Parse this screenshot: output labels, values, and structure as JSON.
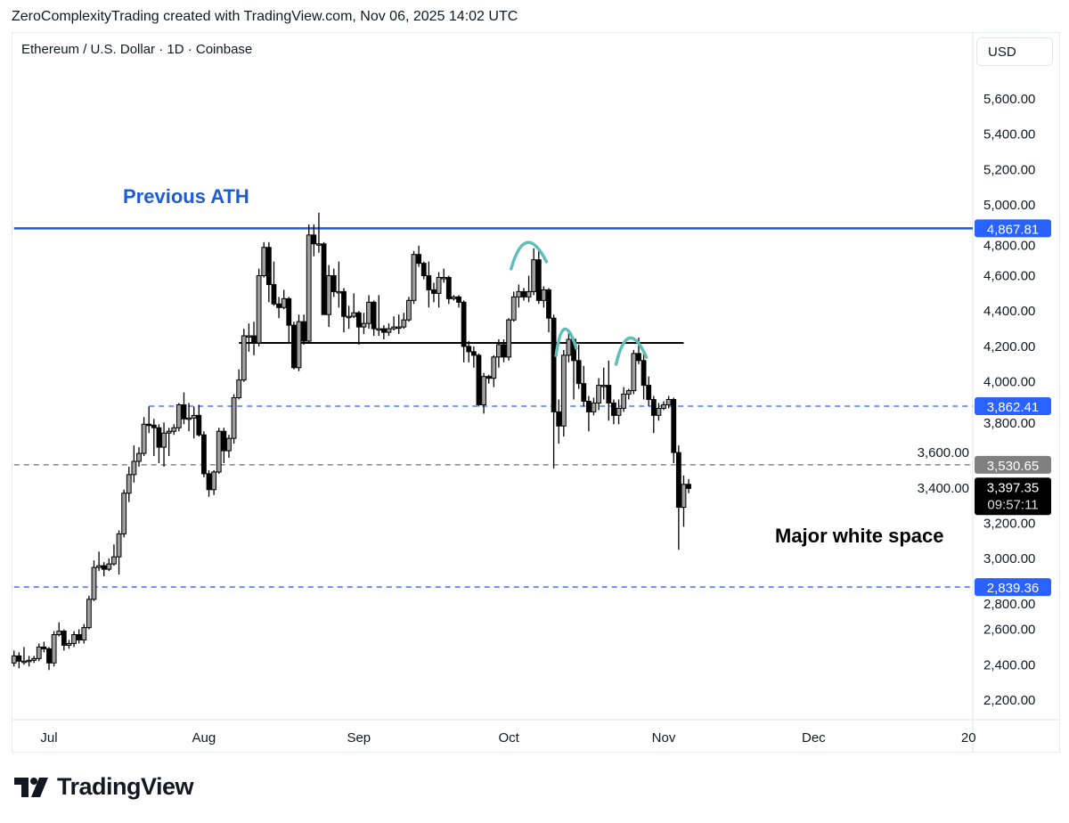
{
  "header": {
    "text": "ZeroComplexityTrading created with TradingView.com, Nov 06, 2025 14:02 UTC"
  },
  "symbol": {
    "text": "Ethereum / U.S. Dollar · 1D · Coinbase"
  },
  "currency_button": "USD",
  "logo": {
    "text": "TradingView",
    "icon": "tradingview-logo-icon"
  },
  "chart_data": {
    "type": "candlestick",
    "ylim": [
      2100,
      5750
    ],
    "y_ticks": [
      "5,600.00",
      "5,400.00",
      "5,200.00",
      "5,000.00",
      "4,800.00",
      "4,600.00",
      "4,400.00",
      "4,200.00",
      "4,000.00",
      "3,800.00",
      "3,600.00",
      "3,400.00",
      "3,200.00",
      "3,000.00",
      "2,800.00",
      "2,600.00",
      "2,400.00",
      "2,200.00"
    ],
    "y_tick_values": [
      5600,
      5400,
      5200,
      5000,
      4800,
      4600,
      4400,
      4200,
      4000,
      3800,
      3600,
      3400,
      3200,
      3000,
      2800,
      2600,
      2400,
      2200
    ],
    "x_ticks": [
      {
        "label": "Jul",
        "date": "2025-07-01"
      },
      {
        "label": "Aug",
        "date": "2025-08-01"
      },
      {
        "label": "Sep",
        "date": "2025-09-01"
      },
      {
        "label": "Oct",
        "date": "2025-10-01"
      },
      {
        "label": "Nov",
        "date": "2025-11-01"
      },
      {
        "label": "Dec",
        "date": "2025-12-01"
      },
      {
        "label": "20",
        "date": "2026-01-01"
      }
    ],
    "colors": {
      "up_body": "#9e9e9e",
      "down_body": "#000000",
      "outline": "#000000",
      "ath_line": "#1e5bd8",
      "level_dash": "#2962ff",
      "last_dash": "#787b86",
      "arc": "#5fbfb8",
      "blue_label": "#2962ff",
      "grey_label": "#808080",
      "price_label": "#000000"
    },
    "levels": [
      {
        "name": "previous-ath",
        "value": 4867.81,
        "label": "4,867.81",
        "style": "solid",
        "color": "#1e5bd8",
        "from": "2025-06-24"
      },
      {
        "name": "resistance",
        "value": 3862.41,
        "label": "3,862.41",
        "style": "dashed",
        "color": "#2962ff",
        "from": "2025-07-21"
      },
      {
        "name": "reference",
        "value": 3530.65,
        "label": "3,530.65",
        "style": "dashed",
        "color": "#787b86",
        "from": "2025-06-24"
      },
      {
        "name": "support",
        "value": 2839.36,
        "label": "2,839.36",
        "style": "dashed",
        "color": "#2962ff",
        "from": "2025-06-24"
      },
      {
        "name": "neckline",
        "value": 4220,
        "style": "solid",
        "color": "#000000",
        "from": "2025-08-08",
        "to": "2025-11-05"
      }
    ],
    "last_price": {
      "value": 3397.35,
      "label": "3,397.35",
      "countdown": "09:57:11"
    },
    "annotations": [
      {
        "text": "Previous ATH",
        "color": "#1e5bd8"
      },
      {
        "text": "Major white space",
        "color": "#000000"
      }
    ],
    "arcs": [
      {
        "from": "2025-10-02",
        "to": "2025-10-08",
        "peak": 4790
      },
      {
        "from": "2025-10-11",
        "to": "2025-10-14",
        "peak": 4300
      },
      {
        "from": "2025-10-23",
        "to": "2025-10-28",
        "peak": 4250
      }
    ],
    "candles": [
      [
        "2025-06-24",
        2410,
        2480,
        2390,
        2450
      ],
      [
        "2025-06-25",
        2450,
        2470,
        2380,
        2420
      ],
      [
        "2025-06-26",
        2420,
        2500,
        2400,
        2420
      ],
      [
        "2025-06-27",
        2420,
        2450,
        2390,
        2425
      ],
      [
        "2025-06-28",
        2425,
        2450,
        2410,
        2435
      ],
      [
        "2025-06-29",
        2435,
        2520,
        2420,
        2500
      ],
      [
        "2025-06-30",
        2500,
        2530,
        2470,
        2490
      ],
      [
        "2025-07-01",
        2490,
        2500,
        2370,
        2410
      ],
      [
        "2025-07-02",
        2410,
        2590,
        2390,
        2570
      ],
      [
        "2025-07-03",
        2570,
        2640,
        2560,
        2590
      ],
      [
        "2025-07-04",
        2590,
        2600,
        2480,
        2510
      ],
      [
        "2025-07-05",
        2510,
        2540,
        2490,
        2520
      ],
      [
        "2025-07-06",
        2520,
        2590,
        2500,
        2570
      ],
      [
        "2025-07-07",
        2570,
        2600,
        2520,
        2540
      ],
      [
        "2025-07-08",
        2540,
        2630,
        2520,
        2610
      ],
      [
        "2025-07-09",
        2610,
        2790,
        2600,
        2770
      ],
      [
        "2025-07-10",
        2770,
        2990,
        2760,
        2950
      ],
      [
        "2025-07-11",
        2950,
        3040,
        2930,
        2960
      ],
      [
        "2025-07-12",
        2960,
        2980,
        2900,
        2940
      ],
      [
        "2025-07-13",
        2940,
        3000,
        2930,
        2970
      ],
      [
        "2025-07-14",
        2970,
        3080,
        2960,
        3010
      ],
      [
        "2025-07-15",
        3010,
        3160,
        2910,
        3140
      ],
      [
        "2025-07-16",
        3140,
        3390,
        3120,
        3370
      ],
      [
        "2025-07-17",
        3370,
        3520,
        3320,
        3475
      ],
      [
        "2025-07-18",
        3475,
        3640,
        3430,
        3550
      ],
      [
        "2025-07-19",
        3550,
        3630,
        3520,
        3595
      ],
      [
        "2025-07-20",
        3595,
        3800,
        3580,
        3760
      ],
      [
        "2025-07-21",
        3760,
        3860,
        3710,
        3755
      ],
      [
        "2025-07-22",
        3755,
        3790,
        3580,
        3740
      ],
      [
        "2025-07-23",
        3740,
        3760,
        3540,
        3630
      ],
      [
        "2025-07-24",
        3630,
        3770,
        3520,
        3710
      ],
      [
        "2025-07-25",
        3710,
        3740,
        3580,
        3720
      ],
      [
        "2025-07-26",
        3720,
        3760,
        3700,
        3740
      ],
      [
        "2025-07-27",
        3740,
        3880,
        3720,
        3870
      ],
      [
        "2025-07-28",
        3870,
        3940,
        3760,
        3790
      ],
      [
        "2025-07-29",
        3790,
        3880,
        3720,
        3795
      ],
      [
        "2025-07-30",
        3795,
        3860,
        3680,
        3810
      ],
      [
        "2025-07-31",
        3810,
        3870,
        3690,
        3700
      ],
      [
        "2025-08-01",
        3700,
        3720,
        3460,
        3480
      ],
      [
        "2025-08-02",
        3480,
        3500,
        3350,
        3390
      ],
      [
        "2025-08-03",
        3390,
        3500,
        3360,
        3490
      ],
      [
        "2025-08-04",
        3490,
        3740,
        3480,
        3720
      ],
      [
        "2025-08-05",
        3720,
        3740,
        3540,
        3610
      ],
      [
        "2025-08-06",
        3610,
        3700,
        3570,
        3680
      ],
      [
        "2025-08-07",
        3680,
        3930,
        3650,
        3910
      ],
      [
        "2025-08-08",
        3910,
        4070,
        3900,
        4010
      ],
      [
        "2025-08-09",
        4010,
        4300,
        4000,
        4260
      ],
      [
        "2025-08-10",
        4260,
        4330,
        4170,
        4260
      ],
      [
        "2025-08-11",
        4260,
        4340,
        4150,
        4220
      ],
      [
        "2025-08-12",
        4220,
        4640,
        4200,
        4600
      ],
      [
        "2025-08-13",
        4600,
        4790,
        4590,
        4760
      ],
      [
        "2025-08-14",
        4760,
        4790,
        4450,
        4550
      ],
      [
        "2025-08-15",
        4550,
        4680,
        4430,
        4440
      ],
      [
        "2025-08-16",
        4440,
        4480,
        4360,
        4420
      ],
      [
        "2025-08-17",
        4420,
        4520,
        4410,
        4470
      ],
      [
        "2025-08-18",
        4470,
        4480,
        4220,
        4320
      ],
      [
        "2025-08-19",
        4320,
        4340,
        4070,
        4080
      ],
      [
        "2025-08-20",
        4080,
        4380,
        4060,
        4340
      ],
      [
        "2025-08-21",
        4340,
        4380,
        4210,
        4230
      ],
      [
        "2025-08-22",
        4230,
        4890,
        4220,
        4830
      ],
      [
        "2025-08-23",
        4830,
        4890,
        4710,
        4780
      ],
      [
        "2025-08-24",
        4780,
        4956,
        4730,
        4780
      ],
      [
        "2025-08-25",
        4780,
        4790,
        4380,
        4380
      ],
      [
        "2025-08-26",
        4380,
        4660,
        4310,
        4600
      ],
      [
        "2025-08-27",
        4600,
        4640,
        4480,
        4510
      ],
      [
        "2025-08-28",
        4510,
        4680,
        4420,
        4510
      ],
      [
        "2025-08-29",
        4510,
        4530,
        4280,
        4370
      ],
      [
        "2025-08-30",
        4370,
        4430,
        4300,
        4370
      ],
      [
        "2025-08-31",
        4370,
        4500,
        4360,
        4390
      ],
      [
        "2025-09-01",
        4390,
        4400,
        4210,
        4310
      ],
      [
        "2025-09-02",
        4310,
        4390,
        4270,
        4330
      ],
      [
        "2025-09-03",
        4330,
        4490,
        4300,
        4450
      ],
      [
        "2025-09-04",
        4450,
        4460,
        4260,
        4300
      ],
      [
        "2025-09-05",
        4300,
        4490,
        4260,
        4300
      ],
      [
        "2025-09-06",
        4300,
        4320,
        4240,
        4280
      ],
      [
        "2025-09-07",
        4280,
        4330,
        4260,
        4300
      ],
      [
        "2025-09-08",
        4300,
        4370,
        4290,
        4310
      ],
      [
        "2025-09-09",
        4310,
        4380,
        4270,
        4310
      ],
      [
        "2025-09-10",
        4310,
        4390,
        4300,
        4350
      ],
      [
        "2025-09-11",
        4350,
        4480,
        4340,
        4460
      ],
      [
        "2025-09-12",
        4460,
        4740,
        4440,
        4720
      ],
      [
        "2025-09-13",
        4720,
        4770,
        4650,
        4670
      ],
      [
        "2025-09-14",
        4670,
        4680,
        4580,
        4600
      ],
      [
        "2025-09-15",
        4600,
        4680,
        4420,
        4520
      ],
      [
        "2025-09-16",
        4520,
        4560,
        4450,
        4500
      ],
      [
        "2025-09-17",
        4500,
        4620,
        4420,
        4590
      ],
      [
        "2025-09-18",
        4590,
        4640,
        4560,
        4590
      ],
      [
        "2025-09-19",
        4590,
        4600,
        4440,
        4470
      ],
      [
        "2025-09-20",
        4470,
        4490,
        4460,
        4480
      ],
      [
        "2025-09-21",
        4480,
        4490,
        4420,
        4450
      ],
      [
        "2025-09-22",
        4450,
        4460,
        4110,
        4200
      ],
      [
        "2025-09-23",
        4200,
        4230,
        4110,
        4170
      ],
      [
        "2025-09-24",
        4170,
        4200,
        4080,
        4150
      ],
      [
        "2025-09-25",
        4150,
        4160,
        3860,
        3870
      ],
      [
        "2025-09-26",
        3870,
        4050,
        3820,
        4030
      ],
      [
        "2025-09-27",
        4030,
        4040,
        3990,
        4020
      ],
      [
        "2025-09-28",
        4020,
        4150,
        3970,
        4140
      ],
      [
        "2025-09-29",
        4140,
        4240,
        4080,
        4210
      ],
      [
        "2025-09-30",
        4210,
        4240,
        4110,
        4140
      ],
      [
        "2025-10-01",
        4140,
        4360,
        4120,
        4350
      ],
      [
        "2025-10-02",
        4350,
        4510,
        4340,
        4480
      ],
      [
        "2025-10-03",
        4480,
        4550,
        4420,
        4510
      ],
      [
        "2025-10-04",
        4510,
        4530,
        4460,
        4480
      ],
      [
        "2025-10-05",
        4480,
        4600,
        4450,
        4510
      ],
      [
        "2025-10-06",
        4510,
        4755,
        4490,
        4690
      ],
      [
        "2025-10-07",
        4690,
        4750,
        4440,
        4460
      ],
      [
        "2025-10-08",
        4460,
        4540,
        4420,
        4520
      ],
      [
        "2025-10-09",
        4520,
        4530,
        4280,
        4360
      ],
      [
        "2025-10-10",
        4360,
        4380,
        3510,
        3830
      ],
      [
        "2025-10-11",
        3830,
        3900,
        3650,
        3750
      ],
      [
        "2025-10-12",
        3750,
        4180,
        3690,
        4150
      ],
      [
        "2025-10-13",
        4150,
        4290,
        4110,
        4240
      ],
      [
        "2025-10-14",
        4240,
        4250,
        3900,
        4120
      ],
      [
        "2025-10-15",
        4120,
        4210,
        3960,
        3990
      ],
      [
        "2025-10-16",
        3990,
        4090,
        3860,
        3890
      ],
      [
        "2025-10-17",
        3890,
        3920,
        3720,
        3830
      ],
      [
        "2025-10-18",
        3830,
        3910,
        3810,
        3880
      ],
      [
        "2025-10-19",
        3880,
        4020,
        3840,
        3980
      ],
      [
        "2025-10-20",
        3980,
        4080,
        3900,
        3980
      ],
      [
        "2025-10-21",
        3980,
        4120,
        3780,
        3880
      ],
      [
        "2025-10-22",
        3880,
        3900,
        3760,
        3810
      ],
      [
        "2025-10-23",
        3810,
        3900,
        3760,
        3850
      ],
      [
        "2025-10-24",
        3850,
        3970,
        3830,
        3930
      ],
      [
        "2025-10-25",
        3930,
        3960,
        3900,
        3950
      ],
      [
        "2025-10-26",
        3950,
        4180,
        3930,
        4160
      ],
      [
        "2025-10-27",
        4160,
        4250,
        4100,
        4120
      ],
      [
        "2025-10-28",
        4120,
        4170,
        3900,
        3980
      ],
      [
        "2025-10-29",
        3980,
        4030,
        3860,
        3900
      ],
      [
        "2025-10-30",
        3900,
        3920,
        3710,
        3810
      ],
      [
        "2025-10-31",
        3810,
        3880,
        3780,
        3850
      ],
      [
        "2025-11-01",
        3850,
        3890,
        3840,
        3870
      ],
      [
        "2025-11-02",
        3870,
        3920,
        3850,
        3900
      ],
      [
        "2025-11-03",
        3900,
        3910,
        3540,
        3600
      ],
      [
        "2025-11-04",
        3600,
        3640,
        3050,
        3290
      ],
      [
        "2025-11-05",
        3290,
        3470,
        3180,
        3420
      ],
      [
        "2025-11-06",
        3420,
        3450,
        3370,
        3397
      ]
    ]
  }
}
